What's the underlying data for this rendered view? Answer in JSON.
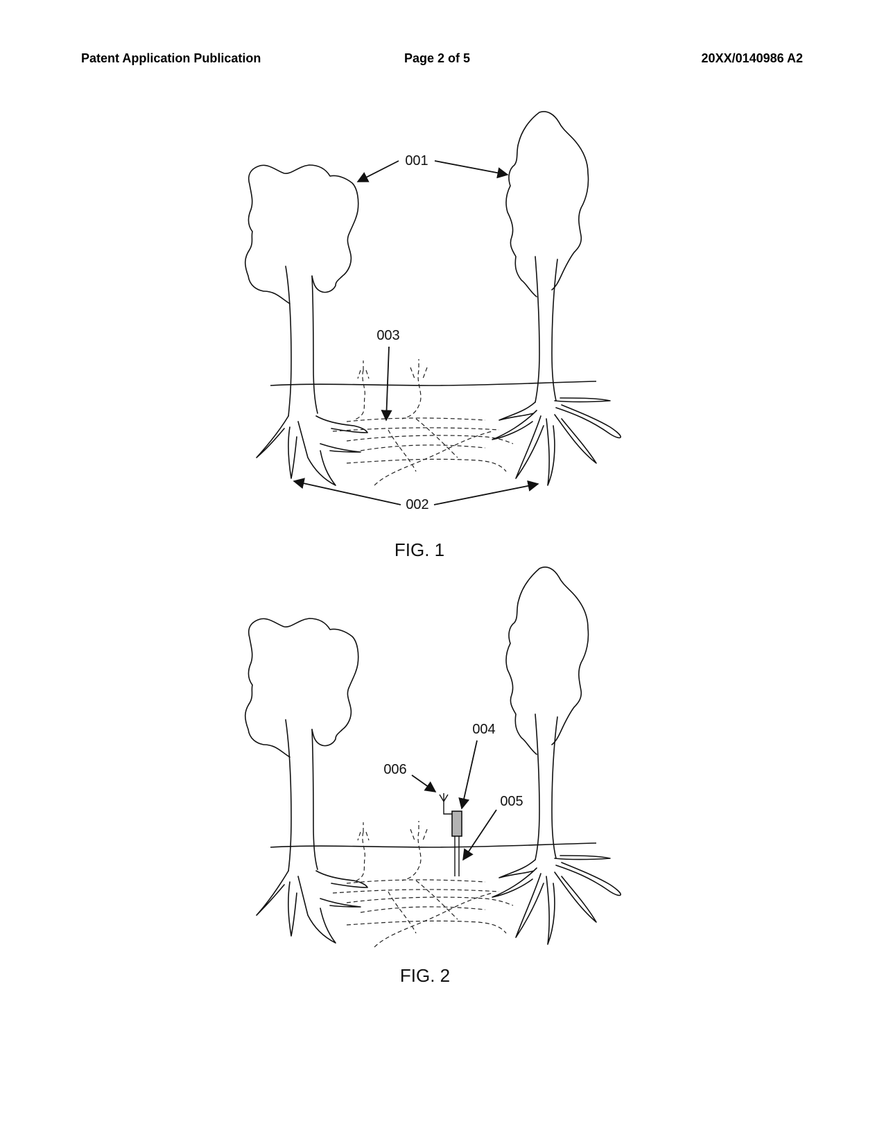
{
  "header": {
    "left": "Patent Application Publication",
    "center": "Page 2 of 5",
    "right": "20XX/0140986 A2"
  },
  "figures": [
    {
      "caption": "FIG. 1",
      "labels": {
        "trees": "001",
        "roots": "002",
        "mycelium": "003"
      }
    },
    {
      "caption": "FIG. 2",
      "labels": {
        "sensor": "004",
        "probe": "005",
        "antenna": "006"
      }
    }
  ],
  "colors": {
    "line": "#111111",
    "sensor_fill": "#b3b3b3"
  }
}
